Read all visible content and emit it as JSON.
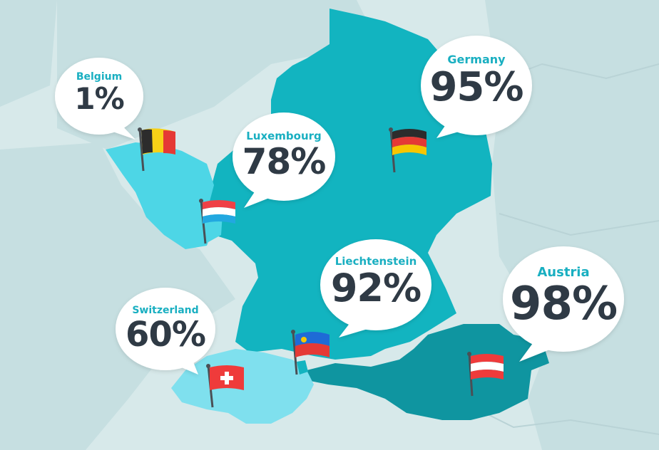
{
  "colors": {
    "sea_background": "#d7e9ea",
    "land_background": "#c6dfe1",
    "germany": "#12b4c0",
    "belgium": "#4dd6e6",
    "luxembourg": "#4dd6e6",
    "switzerland": "#7fe0ee",
    "liechtenstein": "#12b4c0",
    "austria": "#0f95a0",
    "country_name_text": "#19afc1",
    "percent_text": "#2f3a45",
    "bubble_fill": "#ffffff"
  },
  "countries": [
    {
      "id": "belgium",
      "name": "Belgium",
      "percent": "1%",
      "flag_icon": "belgium-flag-icon"
    },
    {
      "id": "luxembourg",
      "name": "Luxembourg",
      "percent": "78%",
      "flag_icon": "luxembourg-flag-icon"
    },
    {
      "id": "germany",
      "name": "Germany",
      "percent": "95%",
      "flag_icon": "germany-flag-icon"
    },
    {
      "id": "liechtenstein",
      "name": "Liechtenstein",
      "percent": "92%",
      "flag_icon": "liechtenstein-flag-icon"
    },
    {
      "id": "switzerland",
      "name": "Switzerland",
      "percent": "60%",
      "flag_icon": "switzerland-flag-icon"
    },
    {
      "id": "austria",
      "name": "Austria",
      "percent": "98%",
      "flag_icon": "austria-flag-icon"
    }
  ]
}
